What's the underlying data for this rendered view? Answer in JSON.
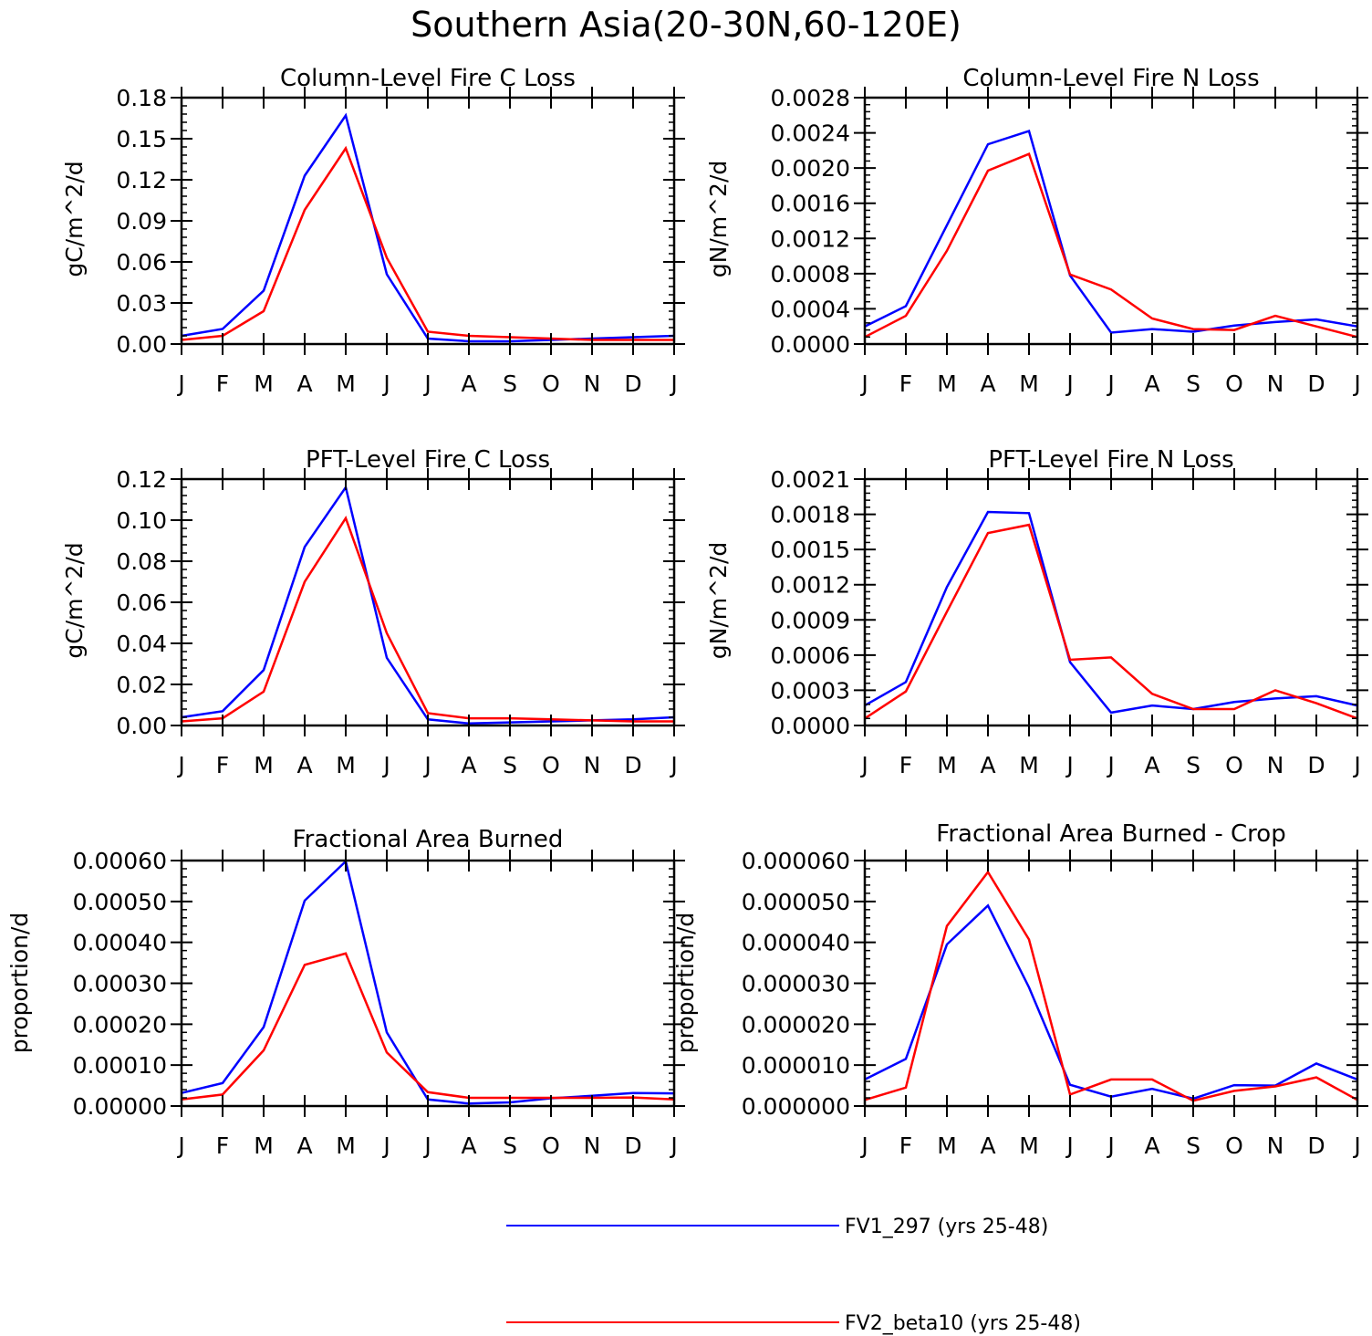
{
  "title": "Southern Asia(20-30N,60-120E)",
  "colors": {
    "series1": "#0000ff",
    "series2": "#ff0000",
    "axis": "#000000"
  },
  "legend": {
    "entries": [
      {
        "label": "FV1_297 (yrs 25-48)",
        "color": "#0000ff"
      },
      {
        "label": "FV2_beta10 (yrs 25-48)",
        "color": "#ff0000"
      }
    ]
  },
  "chart_data": [
    {
      "type": "line",
      "title": "Column-Level Fire C Loss",
      "ylabel": "gC/m^2/d",
      "xlabel": "",
      "categories": [
        "J",
        "F",
        "M",
        "A",
        "M",
        "J",
        "J",
        "A",
        "S",
        "O",
        "N",
        "D",
        "J"
      ],
      "ylim": [
        0,
        0.18
      ],
      "yticks": [
        "0.00",
        "0.03",
        "0.06",
        "0.09",
        "0.12",
        "0.15",
        "0.18"
      ],
      "series": [
        {
          "name": "FV1_297 (yrs 25-48)",
          "values": [
            0.006,
            0.011,
            0.039,
            0.123,
            0.167,
            0.051,
            0.004,
            0.002,
            0.002,
            0.003,
            0.004,
            0.005,
            0.006
          ]
        },
        {
          "name": "FV2_beta10 (yrs 25-48)",
          "values": [
            0.003,
            0.006,
            0.024,
            0.098,
            0.143,
            0.063,
            0.009,
            0.006,
            0.005,
            0.004,
            0.003,
            0.003,
            0.003
          ]
        }
      ]
    },
    {
      "type": "line",
      "title": "Column-Level Fire N Loss",
      "ylabel": "gN/m^2/d",
      "xlabel": "",
      "categories": [
        "J",
        "F",
        "M",
        "A",
        "M",
        "J",
        "J",
        "A",
        "S",
        "O",
        "N",
        "D",
        "J"
      ],
      "ylim": [
        0,
        0.0028
      ],
      "yticks": [
        "0.0000",
        "0.0004",
        "0.0008",
        "0.0012",
        "0.0016",
        "0.0020",
        "0.0024",
        "0.0028"
      ],
      "series": [
        {
          "name": "FV1_297 (yrs 25-48)",
          "values": [
            0.0002,
            0.00043,
            0.00135,
            0.00227,
            0.00242,
            0.00078,
            0.00013,
            0.00017,
            0.00014,
            0.00021,
            0.00025,
            0.00028,
            0.0002
          ]
        },
        {
          "name": "FV2_beta10 (yrs 25-48)",
          "values": [
            8e-05,
            0.00032,
            0.00106,
            0.00197,
            0.00216,
            0.00079,
            0.00062,
            0.00029,
            0.00017,
            0.00016,
            0.00032,
            0.0002,
            8e-05
          ]
        }
      ]
    },
    {
      "type": "line",
      "title": "PFT-Level Fire C Loss",
      "ylabel": "gC/m^2/d",
      "xlabel": "",
      "categories": [
        "J",
        "F",
        "M",
        "A",
        "M",
        "J",
        "J",
        "A",
        "S",
        "O",
        "N",
        "D",
        "J"
      ],
      "ylim": [
        0,
        0.12
      ],
      "yticks": [
        "0.00",
        "0.02",
        "0.04",
        "0.06",
        "0.08",
        "0.10",
        "0.12"
      ],
      "series": [
        {
          "name": "FV1_297 (yrs 25-48)",
          "values": [
            0.004,
            0.007,
            0.027,
            0.087,
            0.116,
            0.033,
            0.003,
            0.001,
            0.0015,
            0.002,
            0.0025,
            0.003,
            0.004
          ]
        },
        {
          "name": "FV2_beta10 (yrs 25-48)",
          "values": [
            0.002,
            0.0035,
            0.0165,
            0.07,
            0.101,
            0.045,
            0.006,
            0.0035,
            0.0035,
            0.003,
            0.0025,
            0.002,
            0.002
          ]
        }
      ]
    },
    {
      "type": "line",
      "title": "PFT-Level Fire N Loss",
      "ylabel": "gN/m^2/d",
      "xlabel": "",
      "categories": [
        "J",
        "F",
        "M",
        "A",
        "M",
        "J",
        "J",
        "A",
        "S",
        "O",
        "N",
        "D",
        "J"
      ],
      "ylim": [
        0,
        0.0021
      ],
      "yticks": [
        "0.0000",
        "0.0003",
        "0.0006",
        "0.0009",
        "0.0012",
        "0.0015",
        "0.0018",
        "0.0021"
      ],
      "series": [
        {
          "name": "FV1_297 (yrs 25-48)",
          "values": [
            0.00017,
            0.00037,
            0.00118,
            0.00182,
            0.00181,
            0.00054,
            0.00011,
            0.00017,
            0.00014,
            0.0002,
            0.00023,
            0.00025,
            0.00017
          ]
        },
        {
          "name": "FV2_beta10 (yrs 25-48)",
          "values": [
            6e-05,
            0.00029,
            0.00097,
            0.00164,
            0.00171,
            0.00056,
            0.00058,
            0.00027,
            0.00014,
            0.00014,
            0.0003,
            0.00019,
            6e-05
          ]
        }
      ]
    },
    {
      "type": "line",
      "title": "Fractional Area Burned",
      "ylabel": "proportion/d",
      "xlabel": "",
      "categories": [
        "J",
        "F",
        "M",
        "A",
        "M",
        "J",
        "J",
        "A",
        "S",
        "O",
        "N",
        "D",
        "J"
      ],
      "ylim": [
        0,
        0.0006
      ],
      "yticks": [
        "0.00000",
        "0.00010",
        "0.00020",
        "0.00030",
        "0.00040",
        "0.00050",
        "0.00060"
      ],
      "series": [
        {
          "name": "FV1_297 (yrs 25-48)",
          "values": [
            3.2e-05,
            5.6e-05,
            0.000193,
            0.000502,
            0.000598,
            0.00018,
            1.6e-05,
            6e-06,
            9e-06,
            1.9e-05,
            2.5e-05,
            3.2e-05,
            3.1e-05
          ]
        },
        {
          "name": "FV2_beta10 (yrs 25-48)",
          "values": [
            1.6e-05,
            2.8e-05,
            0.000136,
            0.000345,
            0.000373,
            0.000131,
            3.4e-05,
            2e-05,
            2e-05,
            2e-05,
            2e-05,
            2.1e-05,
            1.6e-05
          ]
        }
      ]
    },
    {
      "type": "line",
      "title": "Fractional Area Burned - Crop",
      "ylabel": "proportion/d",
      "xlabel": "",
      "categories": [
        "J",
        "F",
        "M",
        "A",
        "M",
        "J",
        "J",
        "A",
        "S",
        "O",
        "N",
        "D",
        "J"
      ],
      "ylim": [
        0,
        6e-05
      ],
      "yticks": [
        "0.000000",
        "0.000010",
        "0.000020",
        "0.000030",
        "0.000040",
        "0.000050",
        "0.000060"
      ],
      "series": [
        {
          "name": "FV1_297 (yrs 25-48)",
          "values": [
            6.5e-06,
            1.15e-05,
            3.95e-05,
            4.9e-05,
            2.9e-05,
            5.2e-06,
            2.3e-06,
            4.2e-06,
            1.8e-06,
            5.1e-06,
            5e-06,
            1.04e-05,
            6.5e-06
          ]
        },
        {
          "name": "FV2_beta10 (yrs 25-48)",
          "values": [
            1.5e-06,
            4.5e-06,
            4.4e-05,
            5.72e-05,
            4.07e-05,
            2.8e-06,
            6.5e-06,
            6.5e-06,
            1.3e-06,
            3.7e-06,
            4.8e-06,
            7e-06,
            1.5e-06
          ]
        }
      ]
    }
  ]
}
